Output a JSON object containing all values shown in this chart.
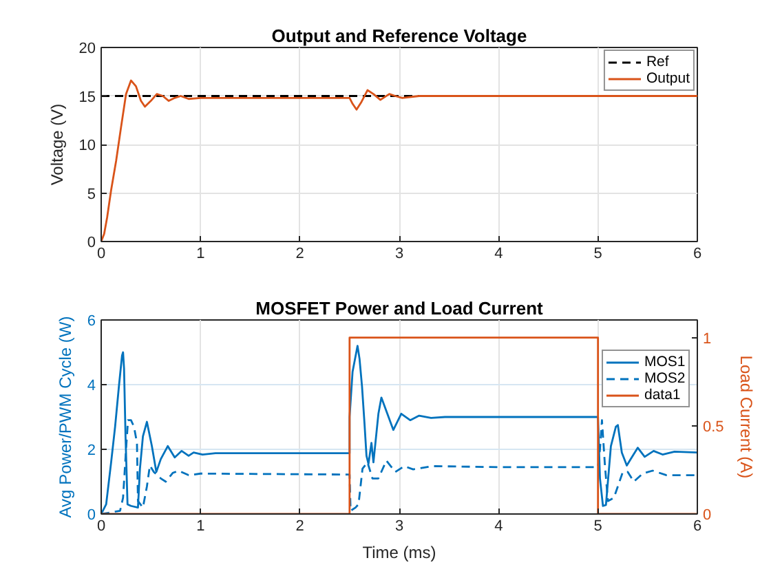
{
  "chart_data": [
    {
      "type": "line",
      "title": "Output and Reference Voltage",
      "ylabel": "Voltage (V)",
      "xlim": [
        0,
        6
      ],
      "xticks": [
        0,
        1,
        2,
        3,
        4,
        5,
        6
      ],
      "ylim": [
        0,
        20
      ],
      "yticks": [
        0,
        5,
        10,
        15,
        20
      ],
      "grid": true,
      "legend": "top right",
      "series": [
        {
          "name": "Ref",
          "color": "#000000",
          "line_style": "dashed",
          "x": [
            0,
            6
          ],
          "values": [
            15,
            15
          ]
        },
        {
          "name": "Output",
          "color": "#d95319",
          "x": [
            0,
            0.03,
            0.06,
            0.1,
            0.15,
            0.2,
            0.25,
            0.3,
            0.35,
            0.4,
            0.44,
            0.5,
            0.56,
            0.62,
            0.68,
            0.74,
            0.8,
            0.88,
            1.0,
            1.5,
            2.0,
            2.5,
            2.53,
            2.57,
            2.62,
            2.68,
            2.74,
            2.81,
            2.9,
            2.96,
            3.03,
            3.2,
            4.0,
            5.0,
            6.0
          ],
          "values": [
            0,
            0.8,
            2.5,
            5.3,
            8.3,
            11.8,
            15.2,
            16.6,
            16.0,
            14.5,
            13.9,
            14.5,
            15.2,
            15.0,
            14.5,
            14.8,
            15.0,
            14.7,
            14.8,
            14.8,
            14.8,
            14.8,
            14.2,
            13.6,
            14.4,
            15.6,
            15.2,
            14.6,
            15.2,
            15.0,
            14.8,
            15.0,
            15.0,
            15.0,
            15.0
          ]
        }
      ]
    },
    {
      "type": "line",
      "title": "MOSFET Power and Load Current",
      "xlabel": "Time (ms)",
      "ylabel": "Avg Power/PWM Cycle (W)",
      "y2label": "Load Current (A)",
      "xlim": [
        0,
        6
      ],
      "xticks": [
        0,
        1,
        2,
        3,
        4,
        5,
        6
      ],
      "ylim": [
        0,
        6
      ],
      "yticks": [
        0,
        2,
        4,
        6
      ],
      "y2lim": [
        0,
        1.1
      ],
      "y2ticks": [
        0,
        0.5,
        1
      ],
      "grid": true,
      "legend": "top right",
      "series": [
        {
          "name": "MOS1",
          "color": "#0072bd",
          "line_style": "solid",
          "x": [
            0,
            0.05,
            0.1,
            0.14,
            0.18,
            0.21,
            0.22,
            0.23,
            0.245,
            0.265,
            0.3,
            0.37,
            0.39,
            0.42,
            0.46,
            0.51,
            0.555,
            0.6,
            0.67,
            0.74,
            0.81,
            0.88,
            0.93,
            1.02,
            1.15,
            2.5,
            2.5,
            2.53,
            2.58,
            2.6,
            2.625,
            2.65,
            2.67,
            2.69,
            2.72,
            2.74,
            2.79,
            2.82,
            2.88,
            2.94,
            3.02,
            3.11,
            3.2,
            3.32,
            3.46,
            5.0,
            5.02,
            5.05,
            5.08,
            5.13,
            5.18,
            5.2,
            5.24,
            5.29,
            5.33,
            5.4,
            5.47,
            5.56,
            5.65,
            5.77,
            6.0
          ],
          "values": [
            0,
            0.3,
            1.6,
            2.7,
            4.0,
            4.9,
            5.0,
            4.5,
            2.4,
            0.3,
            0.25,
            0.2,
            1.4,
            2.4,
            2.85,
            2.1,
            1.3,
            1.7,
            2.1,
            1.75,
            1.95,
            1.8,
            1.9,
            1.84,
            1.88,
            1.88,
            3.0,
            4.4,
            5.2,
            4.8,
            3.95,
            2.8,
            1.8,
            1.55,
            2.2,
            1.6,
            3.1,
            3.6,
            3.1,
            2.6,
            3.1,
            2.9,
            3.04,
            2.97,
            3.0,
            3.0,
            1.1,
            0.25,
            0.28,
            2.1,
            2.7,
            2.75,
            1.9,
            1.5,
            1.7,
            2.05,
            1.77,
            1.95,
            1.84,
            1.93,
            1.9
          ]
        },
        {
          "name": "MOS2",
          "color": "#0072bd",
          "line_style": "dashed",
          "x": [
            0,
            0.1,
            0.19,
            0.22,
            0.25,
            0.27,
            0.3,
            0.33,
            0.36,
            0.37,
            0.42,
            0.46,
            0.49,
            0.53,
            0.6,
            0.65,
            0.72,
            0.78,
            0.88,
            1.0,
            2.5,
            2.51,
            2.56,
            2.59,
            2.63,
            2.68,
            2.73,
            2.79,
            2.87,
            2.96,
            3.05,
            3.14,
            3.33,
            4.0,
            5.0,
            5.02,
            5.04,
            5.07,
            5.1,
            5.16,
            5.25,
            5.3,
            5.36,
            5.45,
            5.55,
            5.69,
            6.0
          ],
          "values": [
            0,
            0.05,
            0.1,
            0.5,
            2.0,
            2.9,
            2.9,
            2.7,
            2.2,
            0.4,
            0.2,
            0.85,
            1.5,
            1.3,
            1.1,
            1.0,
            1.27,
            1.34,
            1.2,
            1.25,
            1.22,
            0.1,
            0.2,
            0.3,
            1.4,
            1.6,
            1.1,
            1.1,
            1.65,
            1.3,
            1.48,
            1.38,
            1.48,
            1.45,
            1.45,
            2.0,
            2.9,
            1.5,
            0.4,
            0.5,
            1.3,
            1.3,
            1.0,
            1.25,
            1.34,
            1.2,
            1.2
          ]
        },
        {
          "name": "data1",
          "color": "#d95319",
          "axis": "y2",
          "x": [
            0,
            2.5,
            2.5,
            5.0,
            5.0,
            6.0
          ],
          "values": [
            0,
            0,
            1,
            1,
            0,
            0
          ]
        }
      ]
    }
  ]
}
